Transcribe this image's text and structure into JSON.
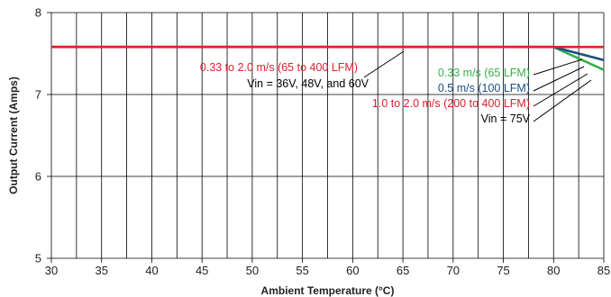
{
  "chart_data": {
    "type": "line",
    "title": "",
    "xlabel": "Ambient Temperature (°C)",
    "ylabel": "Output Current (Amps)",
    "xlim": [
      30,
      85
    ],
    "ylim": [
      5,
      8
    ],
    "x_ticks": [
      "30",
      "35",
      "40",
      "45",
      "50",
      "55",
      "60",
      "65",
      "70",
      "75",
      "80",
      "85"
    ],
    "y_ticks": [
      "5",
      "6",
      "7",
      "8"
    ],
    "grid": true,
    "colors": {
      "red": "#e0202e",
      "blue": "#1a4f82",
      "green": "#35b04a",
      "grid": "#000000"
    },
    "series": [
      {
        "color": "green",
        "x": [
          30,
          80,
          85
        ],
        "y": [
          7.58,
          7.58,
          7.3
        ]
      },
      {
        "color": "blue",
        "x": [
          30,
          80,
          85
        ],
        "y": [
          7.58,
          7.58,
          7.42
        ]
      },
      {
        "color": "red",
        "x": [
          30,
          80,
          85
        ],
        "y": [
          7.58,
          7.58,
          7.58
        ]
      }
    ],
    "annotations": [
      {
        "id": "a1",
        "text": "0.33 to 2.0 m/s (65 to 400 LFM)",
        "color": "red"
      },
      {
        "id": "a2",
        "text": "Vin = 36V, 48V, and 60V",
        "color": "black"
      },
      {
        "id": "a3",
        "text": "0.33 m/s (65 LFM)",
        "color": "green"
      },
      {
        "id": "a4",
        "text": "0.5 m/s (100 LFM)",
        "color": "blue"
      },
      {
        "id": "a5",
        "text": "1.0 to 2.0 m/s (200 to 400 LFM)",
        "color": "red"
      },
      {
        "id": "a6",
        "text": "Vin = 75V",
        "color": "black"
      }
    ]
  }
}
